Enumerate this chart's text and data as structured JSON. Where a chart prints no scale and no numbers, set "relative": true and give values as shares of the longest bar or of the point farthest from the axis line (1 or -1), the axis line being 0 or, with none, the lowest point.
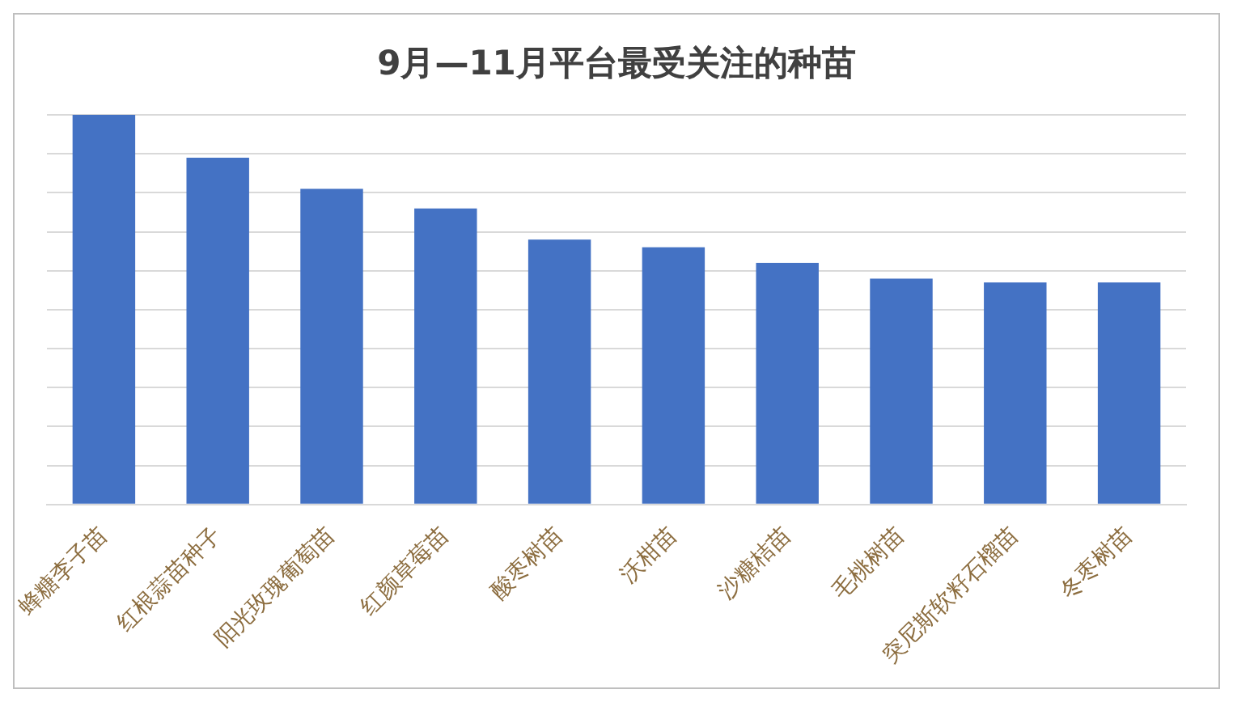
{
  "chart_data": {
    "type": "bar",
    "title": "9月—11月平台最受关注的种苗",
    "relative": true,
    "grid": "y",
    "categories": [
      "蜂糖李子苗",
      "红根蒜苗种子",
      "阳光玫瑰葡萄苗",
      "红颜草莓苗",
      "酸枣树苗",
      "沃柑苗",
      "沙糖桔苗",
      "毛桃树苗",
      "突尼斯软籽石榴苗",
      "冬枣树苗"
    ],
    "values": [
      1,
      0.89,
      0.81,
      0.76,
      0.68,
      0.66,
      0.62,
      0.58,
      0.57,
      0.57
    ],
    "color": "#4472c4"
  }
}
